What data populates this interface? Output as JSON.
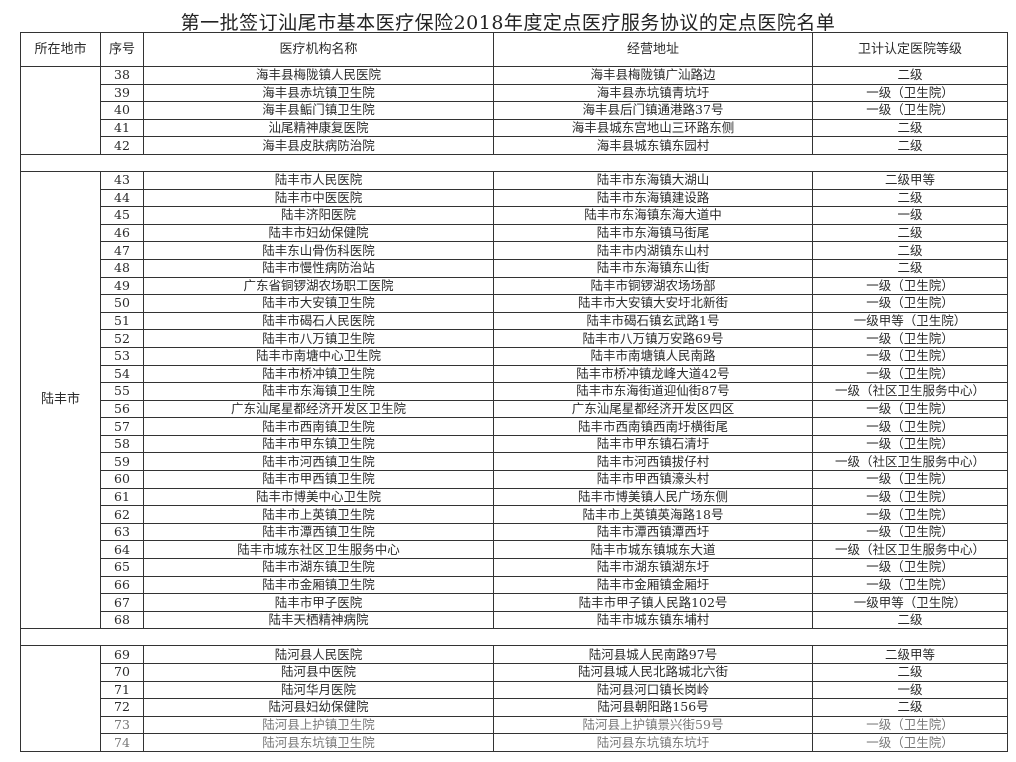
{
  "title": "第一批签订汕尾市基本医疗保险2018年度定点医疗服务协议的定点医院名单",
  "headers": {
    "city": "所在地市",
    "seq": "序号",
    "name": "医疗机构名称",
    "address": "经营地址",
    "grade": "卫计认定医院等级"
  },
  "groups": [
    {
      "city": "",
      "rows": [
        {
          "seq": "38",
          "name": "海丰县梅陇镇人民医院",
          "address": "海丰县梅陇镇广汕路边",
          "grade": "二级"
        },
        {
          "seq": "39",
          "name": "海丰县赤坑镇卫生院",
          "address": "海丰县赤坑镇青坑圩",
          "grade": "一级（卫生院）"
        },
        {
          "seq": "40",
          "name": "海丰县鲘门镇卫生院",
          "address": "海丰县后门镇通港路37号",
          "grade": "一级（卫生院）"
        },
        {
          "seq": "41",
          "name": "汕尾精神康复医院",
          "address": "海丰县城东宫地山三环路东侧",
          "grade": "二级"
        },
        {
          "seq": "42",
          "name": "海丰县皮肤病防治院",
          "address": "海丰县城东镇东园村",
          "grade": "二级"
        }
      ]
    },
    {
      "city": "陆丰市",
      "rows": [
        {
          "seq": "43",
          "name": "陆丰市人民医院",
          "address": "陆丰市东海镇大湖山",
          "grade": "二级甲等"
        },
        {
          "seq": "44",
          "name": "陆丰市中医医院",
          "address": "陆丰市东海镇建设路",
          "grade": "二级"
        },
        {
          "seq": "45",
          "name": "陆丰济阳医院",
          "address": "陆丰市东海镇东海大道中",
          "grade": "一级"
        },
        {
          "seq": "46",
          "name": "陆丰市妇幼保健院",
          "address": "陆丰市东海镇马街尾",
          "grade": "二级"
        },
        {
          "seq": "47",
          "name": "陆丰东山骨伤科医院",
          "address": "陆丰市内湖镇东山村",
          "grade": "二级"
        },
        {
          "seq": "48",
          "name": "陆丰市慢性病防治站",
          "address": "陆丰市东海镇东山街",
          "grade": "二级"
        },
        {
          "seq": "49",
          "name": "广东省铜锣湖农场职工医院",
          "address": "陆丰市铜锣湖农场场部",
          "grade": "一级（卫生院）"
        },
        {
          "seq": "50",
          "name": "陆丰市大安镇卫生院",
          "address": "陆丰市大安镇大安圩北新街",
          "grade": "一级（卫生院）"
        },
        {
          "seq": "51",
          "name": "陆丰市碣石人民医院",
          "address": "陆丰市碣石镇玄武路1号",
          "grade": "一级甲等（卫生院）"
        },
        {
          "seq": "52",
          "name": "陆丰市八万镇卫生院",
          "address": "陆丰市八万镇万安路69号",
          "grade": "一级（卫生院）"
        },
        {
          "seq": "53",
          "name": "陆丰市南塘中心卫生院",
          "address": "陆丰市南塘镇人民南路",
          "grade": "一级（卫生院）"
        },
        {
          "seq": "54",
          "name": "陆丰市桥冲镇卫生院",
          "address": "陆丰市桥冲镇龙峰大道42号",
          "grade": "一级（卫生院）"
        },
        {
          "seq": "55",
          "name": "陆丰市东海镇卫生院",
          "address": "陆丰市东海街道迎仙街87号",
          "grade": "一级（社区卫生服务中心）"
        },
        {
          "seq": "56",
          "name": "广东汕尾星都经济开发区卫生院",
          "address": "广东汕尾星都经济开发区四区",
          "grade": "一级（卫生院）"
        },
        {
          "seq": "57",
          "name": "陆丰市西南镇卫生院",
          "address": "陆丰市西南镇西南圩横街尾",
          "grade": "一级（卫生院）"
        },
        {
          "seq": "58",
          "name": "陆丰市甲东镇卫生院",
          "address": "陆丰市甲东镇石清圩",
          "grade": "一级（卫生院）"
        },
        {
          "seq": "59",
          "name": "陆丰市河西镇卫生院",
          "address": "陆丰市河西镇拔仔村",
          "grade": "一级（社区卫生服务中心）"
        },
        {
          "seq": "60",
          "name": "陆丰市甲西镇卫生院",
          "address": "陆丰市甲西镇濠头村",
          "grade": "一级（卫生院）"
        },
        {
          "seq": "61",
          "name": "陆丰市博美中心卫生院",
          "address": "陆丰市博美镇人民广场东侧",
          "grade": "一级（卫生院）"
        },
        {
          "seq": "62",
          "name": "陆丰市上英镇卫生院",
          "address": "陆丰市上英镇英海路18号",
          "grade": "一级（卫生院）"
        },
        {
          "seq": "63",
          "name": "陆丰市潭西镇卫生院",
          "address": "陆丰市潭西镇潭西圩",
          "grade": "一级（卫生院）"
        },
        {
          "seq": "64",
          "name": "陆丰市城东社区卫生服务中心",
          "address": "陆丰市城东镇城东大道",
          "grade": "一级（社区卫生服务中心）"
        },
        {
          "seq": "65",
          "name": "陆丰市湖东镇卫生院",
          "address": "陆丰市湖东镇湖东圩",
          "grade": "一级（卫生院）"
        },
        {
          "seq": "66",
          "name": "陆丰市金厢镇卫生院",
          "address": "陆丰市金厢镇金厢圩",
          "grade": "一级（卫生院）"
        },
        {
          "seq": "67",
          "name": "陆丰市甲子医院",
          "address": "陆丰市甲子镇人民路102号",
          "grade": "一级甲等（卫生院）"
        },
        {
          "seq": "68",
          "name": "陆丰天栖精神病院",
          "address": "陆丰市城东镇东埔村",
          "grade": "二级"
        }
      ]
    },
    {
      "city": "",
      "rows": [
        {
          "seq": "69",
          "name": "陆河县人民医院",
          "address": "陆河县城人民南路97号",
          "grade": "二级甲等"
        },
        {
          "seq": "70",
          "name": "陆河县中医院",
          "address": "陆河县城人民北路城北六街",
          "grade": "二级"
        },
        {
          "seq": "71",
          "name": "陆河华月医院",
          "address": "陆河县河口镇长岗岭",
          "grade": "一级"
        },
        {
          "seq": "72",
          "name": "陆河县妇幼保健院",
          "address": "陆河县朝阳路156号",
          "grade": "二级"
        },
        {
          "seq": "73",
          "name": "陆河县上护镇卫生院",
          "address": "陆河县上护镇景兴街59号",
          "grade": "一级（卫生院）"
        },
        {
          "seq": "74",
          "name": "陆河县东坑镇卫生院",
          "address": "陆河县东坑镇东坑圩",
          "grade": "一级（卫生院）"
        }
      ]
    }
  ]
}
